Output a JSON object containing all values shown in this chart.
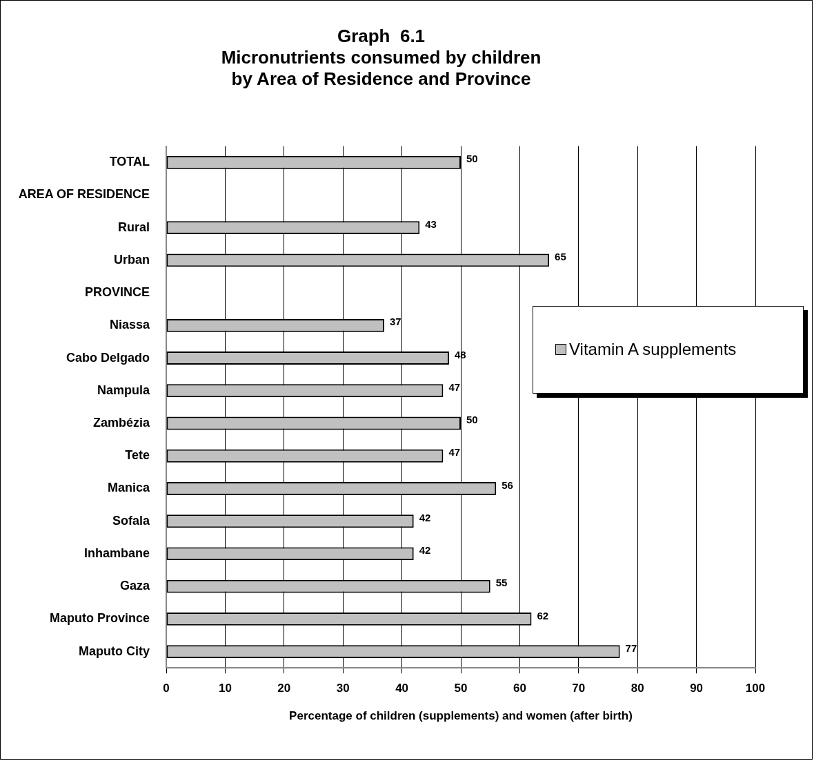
{
  "chart_data": {
    "type": "bar",
    "orientation": "horizontal",
    "title": "Graph  6.1\nMicronutrients consumed by children\nby Area of Residence and Province",
    "xlabel": "Percentage of children (supplements) and women (after birth)",
    "categories": [
      "TOTAL",
      "AREA OF RESIDENCE",
      "Rural",
      "Urban",
      "PROVINCE",
      "Niassa",
      "Cabo Delgado",
      "Nampula",
      "Zambézia",
      "Tete",
      "Manica",
      "Sofala",
      "Inhambane",
      "Gaza",
      "Maputo Province",
      "Maputo City"
    ],
    "series": [
      {
        "name": "Vitamin A supplements",
        "color": "#c0c0c0",
        "values": [
          50,
          null,
          43,
          65,
          null,
          37,
          48,
          47,
          50,
          47,
          56,
          42,
          42,
          55,
          62,
          77
        ]
      }
    ],
    "xlim": [
      0,
      100
    ],
    "xticks": [
      0,
      10,
      20,
      30,
      40,
      50,
      60,
      70,
      80,
      90,
      100
    ],
    "grid": "x",
    "legend": "right",
    "data_labels": true
  }
}
